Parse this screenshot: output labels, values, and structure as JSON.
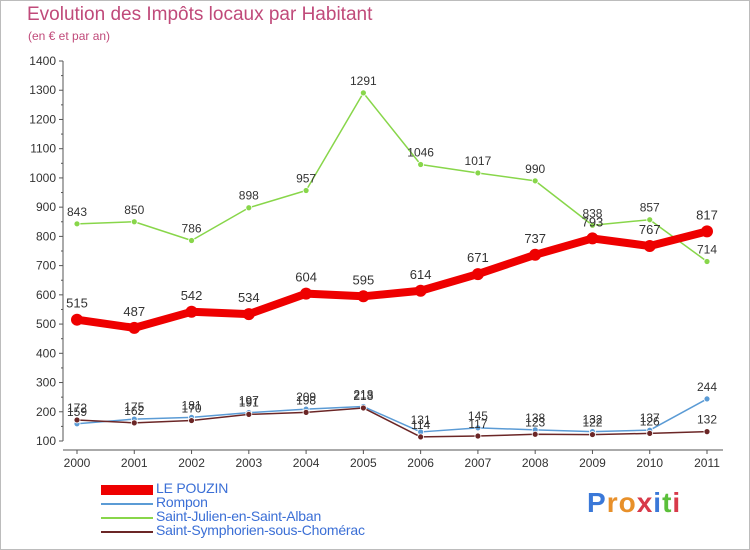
{
  "header": {
    "title": "Evolution des Impôts locaux par Habitant",
    "subtitle": "(en € et par an)"
  },
  "brand": {
    "text": "Proxiti"
  },
  "chart_data": {
    "type": "line",
    "title": "Evolution des Impôts locaux par Habitant",
    "subtitle": "(en € et par an)",
    "xlabel": "",
    "ylabel": "",
    "ylim": [
      100,
      1400
    ],
    "yticks": [
      100,
      200,
      300,
      400,
      500,
      600,
      700,
      800,
      900,
      1000,
      1100,
      1200,
      1300,
      1400
    ],
    "grid": false,
    "legend_position": "bottom-left",
    "x": [
      2000,
      2001,
      2002,
      2003,
      2004,
      2005,
      2006,
      2007,
      2008,
      2009,
      2010,
      2011
    ],
    "series": [
      {
        "name": "LE POUZIN",
        "color": "#ee0000",
        "values": [
          515,
          487,
          542,
          534,
          604,
          595,
          614,
          671,
          737,
          793,
          767,
          817
        ],
        "labels": [
          "515",
          "487",
          "542",
          "534",
          "604",
          "595",
          "614",
          "671",
          "737",
          "793",
          "767",
          "817"
        ]
      },
      {
        "name": "Rompon",
        "color": "#5b9bd5",
        "values": [
          159,
          175,
          181,
          197,
          209,
          218,
          131,
          145,
          138,
          132,
          137,
          244
        ],
        "labels": [
          "159",
          "175",
          "181",
          "197",
          "209",
          "218",
          "131",
          "145",
          "138",
          "132",
          "137",
          "244"
        ]
      },
      {
        "name": "Saint-Julien-en-Saint-Alban",
        "color": "#88d64a",
        "values": [
          843,
          850,
          786,
          898,
          957,
          1291,
          1046,
          1017,
          990,
          838,
          857,
          714
        ],
        "labels": [
          "843",
          "850",
          "786",
          "898",
          "957",
          "1291",
          "1046",
          "1017",
          "990",
          "838",
          "857",
          "714"
        ]
      },
      {
        "name": "Saint-Symphorien-sous-Chomérac",
        "color": "#6b2626",
        "values": [
          172,
          162,
          170,
          191,
          198,
          213,
          114,
          117,
          123,
          122,
          126,
          132
        ],
        "labels": [
          "172",
          "162",
          "170",
          "191",
          "198",
          "213",
          "114",
          "117",
          "123",
          "122",
          "126",
          "132"
        ]
      }
    ]
  }
}
